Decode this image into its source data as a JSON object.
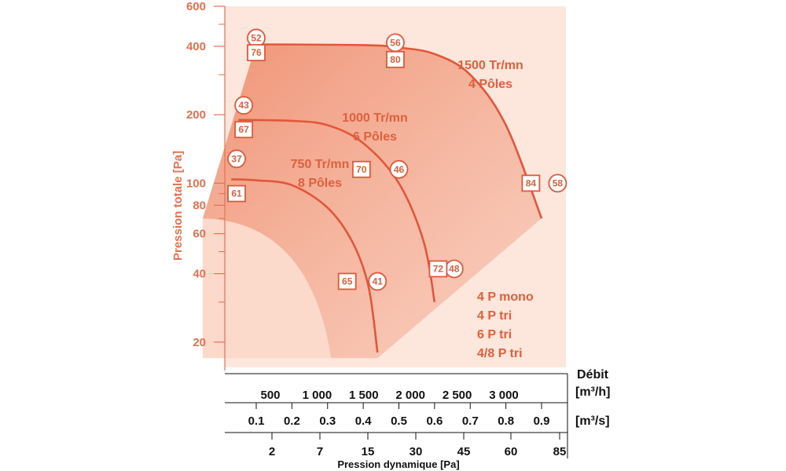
{
  "chart_data": {
    "type": "line",
    "y_axis": {
      "label": "Pression totale [Pa]",
      "scale": "log",
      "range": [
        15,
        600
      ],
      "ticks": [
        20,
        40,
        60,
        80,
        100,
        200,
        400,
        600
      ],
      "minor_ticks": [
        30,
        50,
        70,
        90,
        300,
        500
      ]
    },
    "x_axes": [
      {
        "unit": "[m³/h]",
        "ticks": [
          "500",
          "1 000",
          "1 500",
          "2 000",
          "2 500",
          "3 000"
        ],
        "values": [
          500,
          1000,
          1500,
          2000,
          2500,
          3000
        ]
      },
      {
        "unit": "[m³/s]",
        "ticks": [
          "0.1",
          "0.2",
          "0.3",
          "0.4",
          "0.5",
          "0.6",
          "0.7",
          "0.8",
          "0.9"
        ],
        "values": [
          0.1,
          0.2,
          0.3,
          0.4,
          0.5,
          0.6,
          0.7,
          0.8,
          0.9
        ]
      },
      {
        "unit": "",
        "ticks": [
          "2",
          "7",
          "15",
          "30",
          "45",
          "60",
          "85"
        ],
        "values": [
          2,
          7,
          15,
          30,
          45,
          60,
          85
        ]
      }
    ],
    "x_header": "Débit",
    "x_footer": "Pression dynamique [Pa]",
    "series": [
      {
        "label_lines": [
          "1500 Tr/mn",
          "4 Pôles"
        ],
        "points": [
          [
            0.1,
            408
          ],
          [
            0.4,
            405
          ],
          [
            0.5,
            395
          ],
          [
            0.6,
            370
          ],
          [
            0.7,
            300
          ],
          [
            0.8,
            180
          ],
          [
            0.9,
            70
          ]
        ],
        "circle_markers": [
          {
            "text": "52",
            "x": 0.1,
            "y": 435
          },
          {
            "text": "56",
            "x": 0.49,
            "y": 415
          },
          {
            "text": "58",
            "x": 0.945,
            "y": 100
          }
        ],
        "square_markers": [
          {
            "text": "76",
            "x": 0.1,
            "y": 375
          },
          {
            "text": "80",
            "x": 0.49,
            "y": 350
          },
          {
            "text": "84",
            "x": 0.87,
            "y": 100
          }
        ]
      },
      {
        "label_lines": [
          "1000 Tr/mn",
          "6 Pôles"
        ],
        "points": [
          [
            0.05,
            190
          ],
          [
            0.2,
            188
          ],
          [
            0.3,
            180
          ],
          [
            0.4,
            150
          ],
          [
            0.5,
            100
          ],
          [
            0.57,
            55
          ],
          [
            0.6,
            30
          ]
        ],
        "circle_markers": [
          {
            "text": "43",
            "x": 0.065,
            "y": 220
          },
          {
            "text": "46",
            "x": 0.5,
            "y": 115
          },
          {
            "text": "48",
            "x": 0.655,
            "y": 42
          }
        ],
        "square_markers": [
          {
            "text": "67",
            "x": 0.065,
            "y": 172
          },
          {
            "text": "70",
            "x": 0.395,
            "y": 115
          },
          {
            "text": "72",
            "x": 0.61,
            "y": 42
          }
        ]
      },
      {
        "label_lines": [
          "750 Tr/mn",
          "8 Pôles"
        ],
        "points": [
          [
            0.03,
            104
          ],
          [
            0.1,
            103
          ],
          [
            0.2,
            98
          ],
          [
            0.3,
            78
          ],
          [
            0.37,
            55
          ],
          [
            0.415,
            35
          ],
          [
            0.44,
            18
          ]
        ],
        "circle_markers": [
          {
            "text": "37",
            "x": 0.045,
            "y": 128
          },
          {
            "text": "41",
            "x": 0.44,
            "y": 37
          }
        ],
        "square_markers": [
          {
            "text": "61",
            "x": 0.045,
            "y": 90
          },
          {
            "text": "65",
            "x": 0.355,
            "y": 37
          }
        ]
      }
    ],
    "motor_types": [
      "4 P mono",
      "4 P tri",
      "6 P tri",
      "4/8 P tri"
    ],
    "grid": false
  },
  "colors": {
    "accent": "#e8704f",
    "curve": "#e2573a",
    "background_panel": "#fce5db",
    "text_dark": "#111111"
  }
}
